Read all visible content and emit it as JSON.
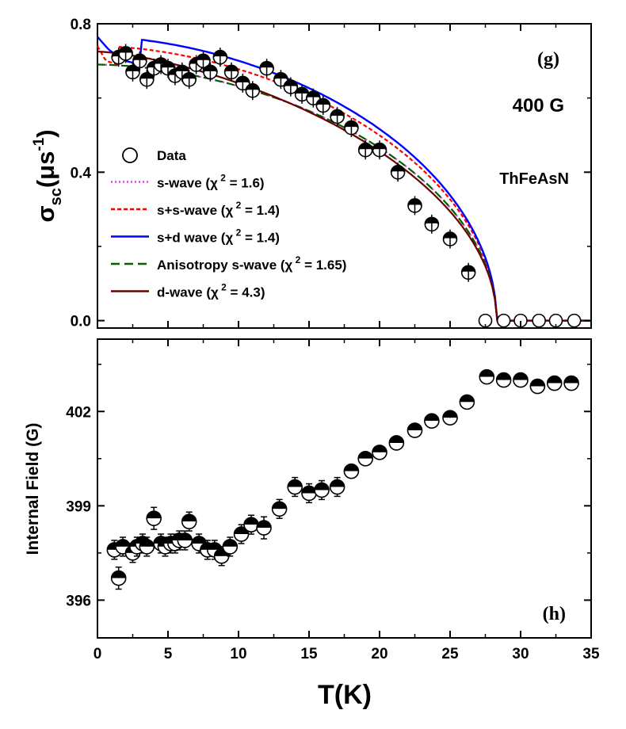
{
  "chart_data": [
    {
      "type": "scatter",
      "panel_label": "(g)",
      "annotation_field": "400 G",
      "annotation_compound": "ThFeAsN",
      "ylabel_main": "σ",
      "ylabel_sub": "sc",
      "ylabel_unit_open": "(μs",
      "ylabel_unit_sup": "-1",
      "ylabel_unit_close": ")",
      "xlim": [
        0,
        35
      ],
      "ylim": [
        -0.02,
        0.8
      ],
      "yticks": [
        0.0,
        0.4,
        0.8
      ],
      "ytick_labels": [
        "0.0",
        "0.4",
        "0.8"
      ],
      "legend": [
        {
          "key": "data",
          "style": "circle",
          "color": "#000000",
          "text": "Data",
          "sup": ""
        },
        {
          "key": "s",
          "style": "dotted",
          "color": "#e040e0",
          "text": "s-wave (χ",
          "sup": "2",
          "tail": " = 1.6)"
        },
        {
          "key": "ss",
          "style": "dashed",
          "color": "#ff0000",
          "text": "s+s-wave (χ",
          "sup": "2",
          "tail": " = 1.4)"
        },
        {
          "key": "sd",
          "style": "solid",
          "color": "#0000ff",
          "text": "s+d wave (χ",
          "sup": "2",
          "tail": " = 1.4)"
        },
        {
          "key": "an",
          "style": "longdash",
          "color": "#006000",
          "text": "Anisotropy s-wave (χ",
          "sup": "2",
          "tail": " = 1.65)"
        },
        {
          "key": "d",
          "style": "solid",
          "color": "#6a0000",
          "text": "d-wave (χ",
          "sup": "2",
          "tail": " = 4.3)"
        }
      ],
      "series": [
        {
          "name": "Data",
          "x": [
            1.5,
            2.0,
            2.5,
            3.0,
            3.5,
            4.0,
            4.5,
            5.0,
            5.5,
            6.0,
            6.5,
            7.0,
            7.5,
            8.0,
            8.7,
            9.5,
            10.3,
            11.0,
            12.0,
            13.0,
            13.7,
            14.5,
            15.3,
            16.0,
            17.0,
            18.0,
            19.0,
            20.0,
            21.3,
            22.5,
            23.7,
            25.0,
            26.3,
            27.5,
            28.8,
            30.0,
            31.3,
            32.5,
            33.8
          ],
          "y": [
            0.71,
            0.72,
            0.67,
            0.7,
            0.65,
            0.68,
            0.69,
            0.68,
            0.66,
            0.67,
            0.65,
            0.69,
            0.7,
            0.67,
            0.71,
            0.67,
            0.64,
            0.62,
            0.68,
            0.65,
            0.63,
            0.61,
            0.6,
            0.58,
            0.55,
            0.52,
            0.46,
            0.46,
            0.4,
            0.31,
            0.26,
            0.22,
            0.13,
            0.0,
            0.0,
            0.0,
            0.0,
            0.0,
            0.0
          ]
        },
        {
          "name": "s-wave",
          "model": {
            "Tc": 28.3,
            "sigma0": 0.69,
            "p": 1.75,
            "low": [
              [
                0,
                0.69
              ],
              [
                28.3,
                0.0
              ]
            ]
          }
        },
        {
          "name": "s+s-wave",
          "model": {
            "Tc": 28.3,
            "sigma0": 0.74,
            "p": 1.75,
            "kink": [
              [
                0,
                0.74
              ],
              [
                0.6,
                0.7
              ],
              [
                1.5,
                0.69
              ]
            ]
          }
        },
        {
          "name": "s+d wave",
          "model": {
            "Tc": 28.3,
            "sigma0": 0.765,
            "p": 1.75,
            "kink": [
              [
                0,
                0.765
              ],
              [
                0.8,
                0.73
              ],
              [
                2.0,
                0.7
              ],
              [
                3.0,
                0.69
              ]
            ]
          }
        },
        {
          "name": "Anisotropy s-wave",
          "model": {
            "Tc": 28.3,
            "sigma0": 0.69,
            "p": 1.75
          }
        },
        {
          "name": "d-wave",
          "model": {
            "Tc": 28.3,
            "sigma0": 0.725,
            "p": 1.45
          }
        }
      ]
    },
    {
      "type": "scatter",
      "panel_label": "(h)",
      "xlabel": "T(K)",
      "ylabel": "Internal Field (G)",
      "xlim": [
        0,
        35
      ],
      "ylim": [
        394.8,
        404.3
      ],
      "xticks": [
        0,
        5,
        10,
        15,
        20,
        25,
        30,
        35
      ],
      "xtick_labels": [
        "0",
        "5",
        "10",
        "15",
        "20",
        "25",
        "30",
        "35"
      ],
      "yticks": [
        396,
        399,
        402
      ],
      "ytick_labels": [
        "396",
        "399",
        "402"
      ],
      "series": [
        {
          "name": "Internal Field",
          "x": [
            1.2,
            1.5,
            1.8,
            2.5,
            2.8,
            3.2,
            3.5,
            4.0,
            4.5,
            4.8,
            5.2,
            5.5,
            5.8,
            6.2,
            6.5,
            7.2,
            7.8,
            8.3,
            8.8,
            9.4,
            10.2,
            10.9,
            11.8,
            12.9,
            14.0,
            15.0,
            15.9,
            17.0,
            18.0,
            19.0,
            20.0,
            21.2,
            22.5,
            23.7,
            25.0,
            26.2,
            27.6,
            28.8,
            30.0,
            31.2,
            32.4,
            33.6
          ],
          "y": [
            397.6,
            396.7,
            397.7,
            397.5,
            397.7,
            397.8,
            397.7,
            398.6,
            397.8,
            397.7,
            397.8,
            397.8,
            397.9,
            397.9,
            398.5,
            397.8,
            397.6,
            397.6,
            397.4,
            397.7,
            398.1,
            398.4,
            398.3,
            398.9,
            399.6,
            399.4,
            399.5,
            399.6,
            400.1,
            400.5,
            400.7,
            401.0,
            401.4,
            401.7,
            401.8,
            402.3,
            403.1,
            403.0,
            403.0,
            402.8,
            402.9,
            402.9
          ],
          "err": [
            0.3,
            0.35,
            0.3,
            0.3,
            0.3,
            0.3,
            0.3,
            0.35,
            0.3,
            0.3,
            0.3,
            0.3,
            0.3,
            0.3,
            0.3,
            0.3,
            0.3,
            0.3,
            0.3,
            0.3,
            0.3,
            0.3,
            0.35,
            0.3,
            0.3,
            0.3,
            0.3,
            0.3,
            0.2,
            0.2,
            0.2,
            0.2,
            0.2,
            0.2,
            0.2,
            0.15,
            0.15,
            0.15,
            0.15,
            0.15,
            0.15,
            0.15
          ]
        }
      ]
    }
  ]
}
